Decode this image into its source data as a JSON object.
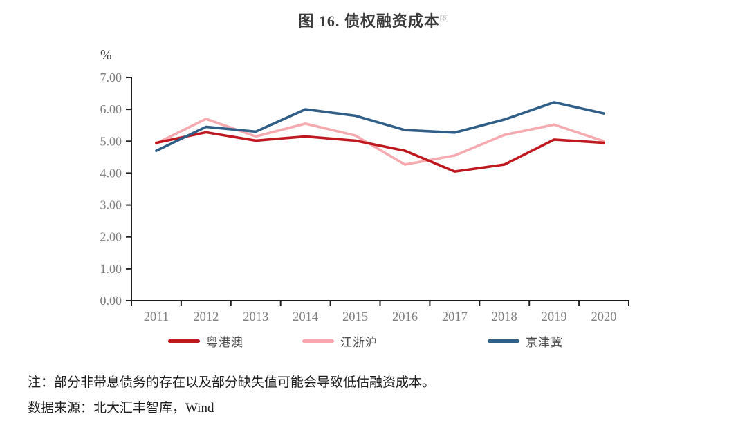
{
  "chart_data": {
    "type": "line",
    "title": "图 16.  债权融资成本",
    "title_superscript": "[6]",
    "y_unit_label": "%",
    "x": [
      "2011",
      "2012",
      "2013",
      "2014",
      "2015",
      "2016",
      "2017",
      "2018",
      "2019",
      "2020"
    ],
    "series": [
      {
        "id": "yuegangao",
        "name": "粤港澳",
        "color": "#c0181f",
        "values": [
          4.95,
          5.28,
          5.02,
          5.15,
          5.02,
          4.7,
          4.05,
          4.27,
          5.05,
          4.95
        ]
      },
      {
        "id": "jiangzhehu",
        "name": "江浙沪",
        "color": "#f6aab0",
        "values": [
          4.93,
          5.7,
          5.15,
          5.55,
          5.18,
          4.27,
          4.55,
          5.2,
          5.52,
          5.0
        ]
      },
      {
        "id": "jingjinji",
        "name": "京津冀",
        "color": "#2f5e87",
        "values": [
          4.7,
          5.45,
          5.3,
          6.0,
          5.8,
          5.35,
          5.27,
          5.68,
          6.22,
          5.87
        ]
      }
    ],
    "ylim": [
      0,
      7
    ],
    "ytick_step": 1,
    "ytick_decimals": 2,
    "grid": false,
    "legend_position": "bottom",
    "axis_color": "#1f1f1f",
    "tick_label_color": "#7f7f7f"
  },
  "notes": [
    "注：部分非带息债务的存在以及部分缺失值可能会导致低估融资成本。",
    "数据来源：北大汇丰智库，Wind"
  ]
}
